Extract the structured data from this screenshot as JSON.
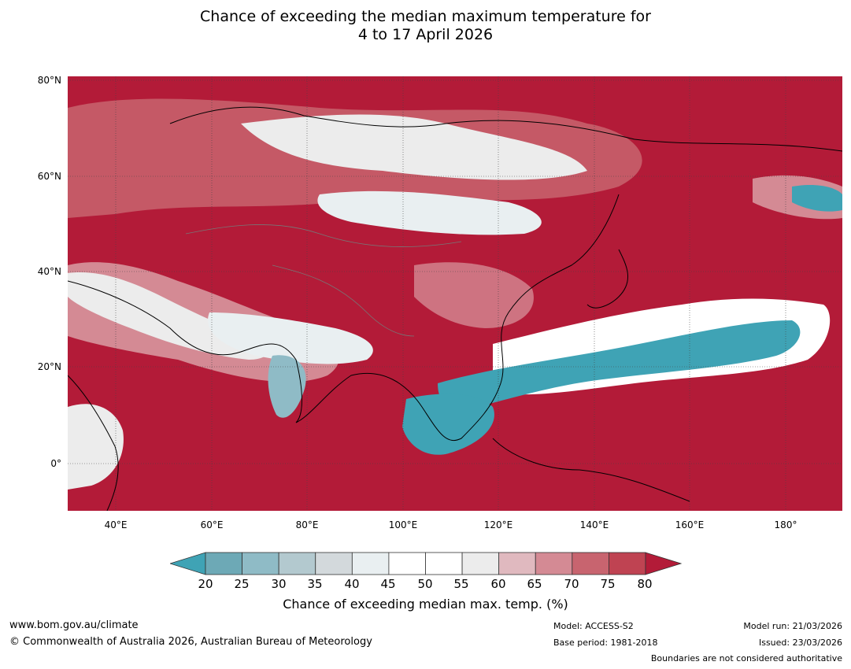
{
  "title": {
    "line1": "Chance of exceeding the median maximum temperature for",
    "line2": "4 to 17 April 2026"
  },
  "map": {
    "lat_labels": [
      "80°N",
      "60°N",
      "40°N",
      "20°N",
      "0°"
    ],
    "lon_labels": [
      "40°E",
      "60°E",
      "80°E",
      "100°E",
      "120°E",
      "140°E",
      "160°E",
      "180°"
    ],
    "extent": {
      "lon_min": 30,
      "lon_max": 192,
      "lat_min": -10,
      "lat_max": 81
    },
    "background_color": "#b31b38"
  },
  "colorbar": {
    "ticks": [
      "20",
      "25",
      "30",
      "35",
      "40",
      "45",
      "50",
      "55",
      "60",
      "65",
      "70",
      "75",
      "80"
    ],
    "colors": [
      "#3fa3b5",
      "#6da9b6",
      "#8fbbc6",
      "#b3c9cf",
      "#d3d9dc",
      "#e9eff1",
      "#ffffff",
      "#ffffff",
      "#ececec",
      "#e0b9bf",
      "#d48a94",
      "#c8646f",
      "#bf4352",
      "#b31b38"
    ],
    "label": "Chance of exceeding median max. temp. (%)"
  },
  "footer": {
    "url": "www.bom.gov.au/climate",
    "copyright": "© Commonwealth of Australia 2026, Australian Bureau of Meteorology",
    "model": "Model: ACCESS-S2",
    "base_period": "Base period: 1981-2018",
    "model_run": "Model run: 21/03/2026",
    "issued": "Issued: 23/03/2026",
    "disclaimer": "Boundaries are not considered authoritative"
  }
}
